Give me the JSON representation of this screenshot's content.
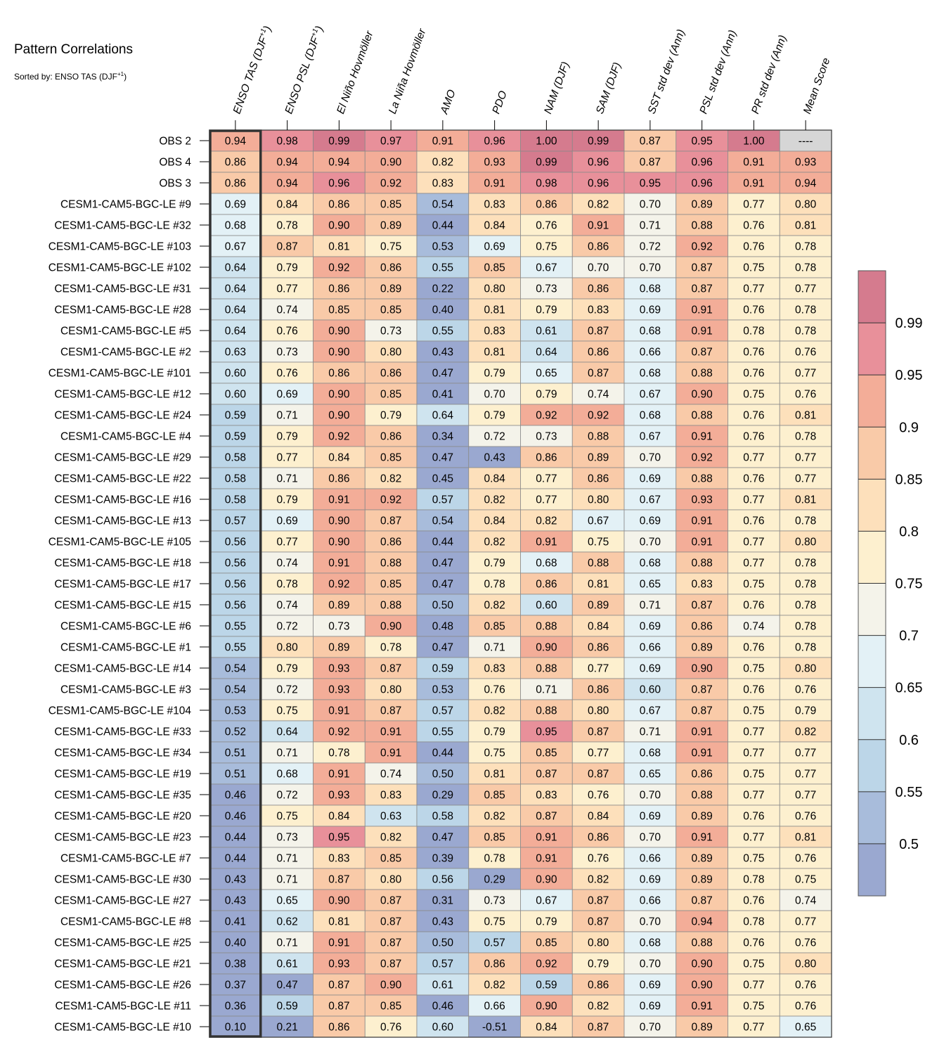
{
  "chart_data": {
    "type": "heatmap",
    "title": "Pattern Correlations",
    "subtitle": "Sorted by: ENSO TAS (DJF",
    "subtitle_sup": "+1",
    "subtitle_end": ")",
    "columns": [
      {
        "label": "ENSO TAS (DJF",
        "sup": "+1",
        "end": ")"
      },
      {
        "label": "ENSO PSL (DJF",
        "sup": "+1",
        "end": ")"
      },
      {
        "label": "El Niño Hovmöller"
      },
      {
        "label": "La Niña Hovmöller"
      },
      {
        "label": "AMO"
      },
      {
        "label": "PDO"
      },
      {
        "label": "NAM (DJF)"
      },
      {
        "label": "SAM (DJF)"
      },
      {
        "label": "SST std dev (Ann)"
      },
      {
        "label": "PSL std dev (Ann)"
      },
      {
        "label": "PR std dev (Ann)"
      },
      {
        "label": "Mean Score"
      }
    ],
    "sorted_column": 0,
    "rows": [
      {
        "label": "OBS 2",
        "values": [
          "0.94",
          "0.98",
          "0.99",
          "0.97",
          "0.91",
          "0.96",
          "1.00",
          "0.99",
          "0.87",
          "0.95",
          "1.00",
          "----"
        ]
      },
      {
        "label": "OBS 4",
        "values": [
          "0.86",
          "0.94",
          "0.94",
          "0.90",
          "0.82",
          "0.93",
          "0.99",
          "0.96",
          "0.87",
          "0.96",
          "0.91",
          "0.93"
        ]
      },
      {
        "label": "OBS 3",
        "values": [
          "0.86",
          "0.94",
          "0.96",
          "0.92",
          "0.83",
          "0.91",
          "0.98",
          "0.96",
          "0.95",
          "0.96",
          "0.91",
          "0.94"
        ]
      },
      {
        "label": "CESM1-CAM5-BGC-LE #9",
        "values": [
          "0.69",
          "0.84",
          "0.86",
          "0.85",
          "0.54",
          "0.83",
          "0.86",
          "0.82",
          "0.70",
          "0.89",
          "0.77",
          "0.80"
        ]
      },
      {
        "label": "CESM1-CAM5-BGC-LE #32",
        "values": [
          "0.68",
          "0.78",
          "0.90",
          "0.89",
          "0.44",
          "0.84",
          "0.76",
          "0.91",
          "0.71",
          "0.88",
          "0.76",
          "0.81"
        ]
      },
      {
        "label": "CESM1-CAM5-BGC-LE #103",
        "values": [
          "0.67",
          "0.87",
          "0.81",
          "0.75",
          "0.53",
          "0.69",
          "0.75",
          "0.86",
          "0.72",
          "0.92",
          "0.76",
          "0.78"
        ]
      },
      {
        "label": "CESM1-CAM5-BGC-LE #102",
        "values": [
          "0.64",
          "0.79",
          "0.92",
          "0.86",
          "0.55",
          "0.85",
          "0.67",
          "0.70",
          "0.70",
          "0.87",
          "0.75",
          "0.78"
        ]
      },
      {
        "label": "CESM1-CAM5-BGC-LE #31",
        "values": [
          "0.64",
          "0.77",
          "0.86",
          "0.89",
          "0.22",
          "0.80",
          "0.73",
          "0.86",
          "0.68",
          "0.87",
          "0.77",
          "0.77"
        ]
      },
      {
        "label": "CESM1-CAM5-BGC-LE #28",
        "values": [
          "0.64",
          "0.74",
          "0.85",
          "0.85",
          "0.40",
          "0.81",
          "0.79",
          "0.83",
          "0.69",
          "0.91",
          "0.76",
          "0.78"
        ]
      },
      {
        "label": "CESM1-CAM5-BGC-LE #5",
        "values": [
          "0.64",
          "0.76",
          "0.90",
          "0.73",
          "0.55",
          "0.83",
          "0.61",
          "0.87",
          "0.68",
          "0.91",
          "0.78",
          "0.78"
        ]
      },
      {
        "label": "CESM1-CAM5-BGC-LE #2",
        "values": [
          "0.63",
          "0.73",
          "0.90",
          "0.80",
          "0.43",
          "0.81",
          "0.64",
          "0.86",
          "0.66",
          "0.87",
          "0.76",
          "0.76"
        ]
      },
      {
        "label": "CESM1-CAM5-BGC-LE #101",
        "values": [
          "0.60",
          "0.76",
          "0.86",
          "0.86",
          "0.47",
          "0.79",
          "0.65",
          "0.87",
          "0.68",
          "0.88",
          "0.76",
          "0.77"
        ]
      },
      {
        "label": "CESM1-CAM5-BGC-LE #12",
        "values": [
          "0.60",
          "0.69",
          "0.90",
          "0.85",
          "0.41",
          "0.70",
          "0.79",
          "0.74",
          "0.67",
          "0.90",
          "0.75",
          "0.76"
        ]
      },
      {
        "label": "CESM1-CAM5-BGC-LE #24",
        "values": [
          "0.59",
          "0.71",
          "0.90",
          "0.79",
          "0.64",
          "0.79",
          "0.92",
          "0.92",
          "0.68",
          "0.88",
          "0.76",
          "0.81"
        ]
      },
      {
        "label": "CESM1-CAM5-BGC-LE #4",
        "values": [
          "0.59",
          "0.79",
          "0.92",
          "0.86",
          "0.34",
          "0.72",
          "0.73",
          "0.88",
          "0.67",
          "0.91",
          "0.76",
          "0.78"
        ]
      },
      {
        "label": "CESM1-CAM5-BGC-LE #29",
        "values": [
          "0.58",
          "0.77",
          "0.84",
          "0.85",
          "0.47",
          "0.43",
          "0.86",
          "0.89",
          "0.70",
          "0.92",
          "0.77",
          "0.77"
        ]
      },
      {
        "label": "CESM1-CAM5-BGC-LE #22",
        "values": [
          "0.58",
          "0.71",
          "0.86",
          "0.82",
          "0.45",
          "0.84",
          "0.77",
          "0.86",
          "0.69",
          "0.88",
          "0.76",
          "0.77"
        ]
      },
      {
        "label": "CESM1-CAM5-BGC-LE #16",
        "values": [
          "0.58",
          "0.79",
          "0.91",
          "0.92",
          "0.57",
          "0.82",
          "0.77",
          "0.80",
          "0.67",
          "0.93",
          "0.77",
          "0.81"
        ]
      },
      {
        "label": "CESM1-CAM5-BGC-LE #13",
        "values": [
          "0.57",
          "0.69",
          "0.90",
          "0.87",
          "0.54",
          "0.84",
          "0.82",
          "0.67",
          "0.69",
          "0.91",
          "0.76",
          "0.78"
        ]
      },
      {
        "label": "CESM1-CAM5-BGC-LE #105",
        "values": [
          "0.56",
          "0.77",
          "0.90",
          "0.86",
          "0.44",
          "0.82",
          "0.91",
          "0.75",
          "0.70",
          "0.91",
          "0.77",
          "0.80"
        ]
      },
      {
        "label": "CESM1-CAM5-BGC-LE #18",
        "values": [
          "0.56",
          "0.74",
          "0.91",
          "0.88",
          "0.47",
          "0.79",
          "0.68",
          "0.88",
          "0.68",
          "0.88",
          "0.77",
          "0.78"
        ]
      },
      {
        "label": "CESM1-CAM5-BGC-LE #17",
        "values": [
          "0.56",
          "0.78",
          "0.92",
          "0.85",
          "0.47",
          "0.78",
          "0.86",
          "0.81",
          "0.65",
          "0.83",
          "0.75",
          "0.78"
        ]
      },
      {
        "label": "CESM1-CAM5-BGC-LE #15",
        "values": [
          "0.56",
          "0.74",
          "0.89",
          "0.88",
          "0.50",
          "0.82",
          "0.60",
          "0.89",
          "0.71",
          "0.87",
          "0.76",
          "0.78"
        ]
      },
      {
        "label": "CESM1-CAM5-BGC-LE #6",
        "values": [
          "0.55",
          "0.72",
          "0.73",
          "0.90",
          "0.48",
          "0.85",
          "0.88",
          "0.84",
          "0.69",
          "0.86",
          "0.74",
          "0.78"
        ]
      },
      {
        "label": "CESM1-CAM5-BGC-LE #1",
        "values": [
          "0.55",
          "0.80",
          "0.89",
          "0.78",
          "0.47",
          "0.71",
          "0.90",
          "0.86",
          "0.66",
          "0.89",
          "0.76",
          "0.78"
        ]
      },
      {
        "label": "CESM1-CAM5-BGC-LE #14",
        "values": [
          "0.54",
          "0.79",
          "0.93",
          "0.87",
          "0.59",
          "0.83",
          "0.88",
          "0.77",
          "0.69",
          "0.90",
          "0.75",
          "0.80"
        ]
      },
      {
        "label": "CESM1-CAM5-BGC-LE #3",
        "values": [
          "0.54",
          "0.72",
          "0.93",
          "0.80",
          "0.53",
          "0.76",
          "0.71",
          "0.86",
          "0.60",
          "0.87",
          "0.76",
          "0.76"
        ]
      },
      {
        "label": "CESM1-CAM5-BGC-LE #104",
        "values": [
          "0.53",
          "0.75",
          "0.91",
          "0.87",
          "0.57",
          "0.82",
          "0.88",
          "0.80",
          "0.67",
          "0.87",
          "0.75",
          "0.79"
        ]
      },
      {
        "label": "CESM1-CAM5-BGC-LE #33",
        "values": [
          "0.52",
          "0.64",
          "0.92",
          "0.91",
          "0.55",
          "0.79",
          "0.95",
          "0.87",
          "0.71",
          "0.91",
          "0.77",
          "0.82"
        ]
      },
      {
        "label": "CESM1-CAM5-BGC-LE #34",
        "values": [
          "0.51",
          "0.71",
          "0.78",
          "0.91",
          "0.44",
          "0.75",
          "0.85",
          "0.77",
          "0.68",
          "0.91",
          "0.77",
          "0.77"
        ]
      },
      {
        "label": "CESM1-CAM5-BGC-LE #19",
        "values": [
          "0.51",
          "0.68",
          "0.91",
          "0.74",
          "0.50",
          "0.81",
          "0.87",
          "0.87",
          "0.65",
          "0.86",
          "0.75",
          "0.77"
        ]
      },
      {
        "label": "CESM1-CAM5-BGC-LE #35",
        "values": [
          "0.46",
          "0.72",
          "0.93",
          "0.83",
          "0.29",
          "0.85",
          "0.83",
          "0.76",
          "0.70",
          "0.88",
          "0.77",
          "0.77"
        ]
      },
      {
        "label": "CESM1-CAM5-BGC-LE #20",
        "values": [
          "0.46",
          "0.75",
          "0.84",
          "0.63",
          "0.58",
          "0.82",
          "0.87",
          "0.84",
          "0.69",
          "0.89",
          "0.76",
          "0.76"
        ]
      },
      {
        "label": "CESM1-CAM5-BGC-LE #23",
        "values": [
          "0.44",
          "0.73",
          "0.95",
          "0.82",
          "0.47",
          "0.85",
          "0.91",
          "0.86",
          "0.70",
          "0.91",
          "0.77",
          "0.81"
        ]
      },
      {
        "label": "CESM1-CAM5-BGC-LE #7",
        "values": [
          "0.44",
          "0.71",
          "0.83",
          "0.85",
          "0.39",
          "0.78",
          "0.91",
          "0.76",
          "0.66",
          "0.89",
          "0.75",
          "0.76"
        ]
      },
      {
        "label": "CESM1-CAM5-BGC-LE #30",
        "values": [
          "0.43",
          "0.71",
          "0.87",
          "0.80",
          "0.56",
          "0.29",
          "0.90",
          "0.82",
          "0.69",
          "0.89",
          "0.78",
          "0.75"
        ]
      },
      {
        "label": "CESM1-CAM5-BGC-LE #27",
        "values": [
          "0.43",
          "0.65",
          "0.90",
          "0.87",
          "0.31",
          "0.73",
          "0.67",
          "0.87",
          "0.66",
          "0.87",
          "0.76",
          "0.74"
        ]
      },
      {
        "label": "CESM1-CAM5-BGC-LE #8",
        "values": [
          "0.41",
          "0.62",
          "0.81",
          "0.87",
          "0.43",
          "0.75",
          "0.79",
          "0.87",
          "0.70",
          "0.94",
          "0.78",
          "0.77"
        ]
      },
      {
        "label": "CESM1-CAM5-BGC-LE #25",
        "values": [
          "0.40",
          "0.71",
          "0.91",
          "0.87",
          "0.50",
          "0.57",
          "0.85",
          "0.80",
          "0.68",
          "0.88",
          "0.76",
          "0.76"
        ]
      },
      {
        "label": "CESM1-CAM5-BGC-LE #21",
        "values": [
          "0.38",
          "0.61",
          "0.93",
          "0.87",
          "0.57",
          "0.86",
          "0.92",
          "0.79",
          "0.70",
          "0.90",
          "0.75",
          "0.80"
        ]
      },
      {
        "label": "CESM1-CAM5-BGC-LE #26",
        "values": [
          "0.37",
          "0.47",
          "0.87",
          "0.90",
          "0.61",
          "0.82",
          "0.59",
          "0.86",
          "0.69",
          "0.90",
          "0.77",
          "0.76"
        ]
      },
      {
        "label": "CESM1-CAM5-BGC-LE #11",
        "values": [
          "0.36",
          "0.59",
          "0.87",
          "0.85",
          "0.46",
          "0.66",
          "0.90",
          "0.82",
          "0.69",
          "0.91",
          "0.75",
          "0.76"
        ]
      },
      {
        "label": "CESM1-CAM5-BGC-LE #10",
        "values": [
          "0.10",
          "0.21",
          "0.86",
          "0.76",
          "0.60",
          "-0.51",
          "0.84",
          "0.87",
          "0.70",
          "0.89",
          "0.77",
          "0.65"
        ]
      }
    ],
    "colorbar": {
      "tick_labels": [
        "0.99",
        "0.95",
        "0.9",
        "0.85",
        "0.8",
        "0.75",
        "0.7",
        "0.65",
        "0.6",
        "0.55",
        "0.5"
      ],
      "thresholds": [
        0.5,
        0.55,
        0.6,
        0.65,
        0.7,
        0.75,
        0.8,
        0.85,
        0.9,
        0.95,
        0.99
      ],
      "colors": [
        "#9aa8d0",
        "#a8bcdb",
        "#bcd6e8",
        "#cfe4ef",
        "#e3f1f6",
        "#f4f3ea",
        "#fdf0cf",
        "#fde0bb",
        "#f9caa8",
        "#f3ad98",
        "#e8909a",
        "#d57b8e"
      ],
      "missing_color": "#d6d6d6"
    }
  }
}
